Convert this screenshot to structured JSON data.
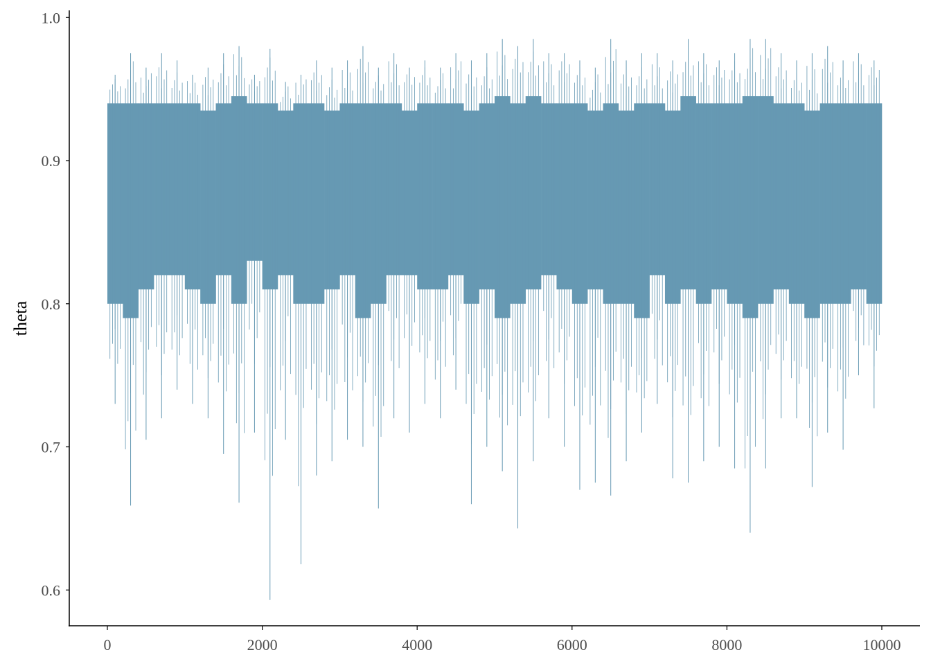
{
  "chart_data": {
    "type": "line",
    "title": "",
    "xlabel": "",
    "ylabel": "theta",
    "xlim": [
      -492,
      10492
    ],
    "ylim": [
      0.575,
      1.004
    ],
    "x_ticks": [
      "0",
      "2000",
      "4000",
      "6000",
      "8000",
      "10000"
    ],
    "x_tick_values": [
      0,
      2000,
      4000,
      6000,
      8000,
      10000
    ],
    "y_ticks": [
      "0.6",
      "0.7",
      "0.8",
      "0.9",
      "1.0"
    ],
    "y_tick_values": [
      0.6,
      0.7,
      0.8,
      0.9,
      1.0
    ],
    "grid": false,
    "legend": "none",
    "series_color": "#6699b3",
    "bin_width": 200,
    "series": [
      {
        "bin_start": [
          0,
          200,
          400,
          600,
          800,
          1000,
          1200,
          1400,
          1600,
          1800,
          2000,
          2200,
          2400,
          2600,
          2800,
          3000,
          3200,
          3400,
          3600,
          3800,
          4000,
          4200,
          4400,
          4600,
          4800,
          5000,
          5200,
          5400,
          5600,
          5800,
          6000,
          6200,
          6400,
          6600,
          6800,
          7000,
          7200,
          7400,
          7600,
          7800,
          8000,
          8200,
          8400,
          8600,
          8800,
          9000,
          9200,
          9400,
          9600,
          9800
        ],
        "min": [
          0.73,
          0.659,
          0.705,
          0.72,
          0.74,
          0.73,
          0.72,
          0.695,
          0.661,
          0.71,
          0.593,
          0.705,
          0.618,
          0.68,
          0.69,
          0.705,
          0.7,
          0.657,
          0.72,
          0.71,
          0.73,
          0.72,
          0.74,
          0.66,
          0.7,
          0.683,
          0.643,
          0.69,
          0.72,
          0.7,
          0.67,
          0.675,
          0.666,
          0.69,
          0.71,
          0.73,
          0.678,
          0.675,
          0.69,
          0.7,
          0.685,
          0.64,
          0.685,
          0.72,
          0.72,
          0.672,
          0.71,
          0.698,
          0.75,
          0.727
        ],
        "max": [
          0.96,
          0.975,
          0.965,
          0.975,
          0.97,
          0.96,
          0.965,
          0.975,
          0.98,
          0.96,
          0.978,
          0.955,
          0.96,
          0.97,
          0.965,
          0.97,
          0.98,
          0.965,
          0.975,
          0.965,
          0.97,
          0.965,
          0.975,
          0.97,
          0.975,
          0.985,
          0.98,
          0.985,
          0.975,
          0.975,
          0.97,
          0.965,
          0.985,
          0.97,
          0.975,
          0.975,
          0.97,
          0.985,
          0.975,
          0.97,
          0.975,
          0.985,
          0.985,
          0.975,
          0.97,
          0.975,
          0.98,
          0.97,
          0.975,
          0.97
        ],
        "core_low": [
          0.8,
          0.79,
          0.81,
          0.82,
          0.82,
          0.81,
          0.8,
          0.82,
          0.8,
          0.83,
          0.81,
          0.82,
          0.8,
          0.8,
          0.81,
          0.82,
          0.79,
          0.8,
          0.82,
          0.82,
          0.81,
          0.81,
          0.82,
          0.8,
          0.81,
          0.79,
          0.8,
          0.81,
          0.82,
          0.81,
          0.8,
          0.81,
          0.8,
          0.8,
          0.79,
          0.82,
          0.8,
          0.81,
          0.8,
          0.81,
          0.8,
          0.79,
          0.8,
          0.81,
          0.8,
          0.79,
          0.8,
          0.8,
          0.81,
          0.8
        ],
        "core_high": [
          0.94,
          0.94,
          0.94,
          0.94,
          0.94,
          0.94,
          0.935,
          0.94,
          0.945,
          0.94,
          0.94,
          0.935,
          0.94,
          0.94,
          0.935,
          0.94,
          0.94,
          0.94,
          0.94,
          0.935,
          0.94,
          0.94,
          0.94,
          0.935,
          0.94,
          0.945,
          0.94,
          0.945,
          0.94,
          0.94,
          0.94,
          0.935,
          0.94,
          0.935,
          0.94,
          0.94,
          0.935,
          0.945,
          0.94,
          0.94,
          0.94,
          0.945,
          0.945,
          0.94,
          0.94,
          0.935,
          0.94,
          0.94,
          0.94,
          0.94
        ]
      }
    ]
  }
}
